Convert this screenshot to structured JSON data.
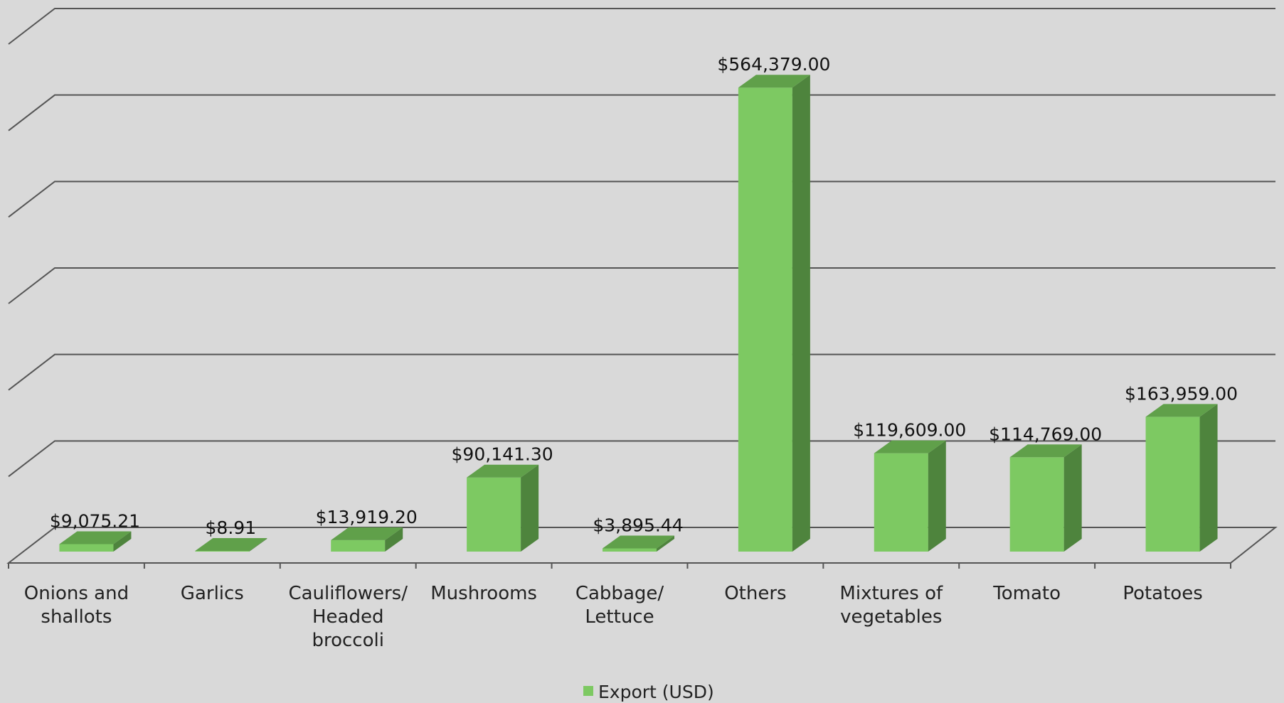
{
  "chart_data": {
    "type": "bar",
    "style": "3d-column",
    "categories": [
      "Onions and shallots",
      "Garlics",
      "Cauliflowers/ Headed broccoli",
      "Mushrooms",
      "Cabbage/ Lettuce",
      "Others",
      "Mixtures of vegetables",
      "Tomato",
      "Potatoes"
    ],
    "category_label_lines": [
      [
        "Onions and",
        "shallots"
      ],
      [
        "Garlics"
      ],
      [
        "Cauliflowers/",
        "Headed",
        "broccoli"
      ],
      [
        "Mushrooms"
      ],
      [
        "Cabbage/",
        "Lettuce"
      ],
      [
        "Others"
      ],
      [
        "Mixtures of",
        "vegetables"
      ],
      [
        "Tomato"
      ],
      [
        "Potatoes"
      ]
    ],
    "series": [
      {
        "name": "Export (USD)",
        "values": [
          9075.21,
          8.91,
          13919.2,
          90141.3,
          3895.44,
          564379.0,
          119609.0,
          114769.0,
          163959.0
        ],
        "data_labels": [
          "$9,075.21",
          "$8.91",
          "$13,919.20",
          "$90,141.30",
          "$3,895.44",
          "$564,379.00",
          "$119,609.00",
          "$114,769.00",
          "$163,959.00"
        ],
        "color": "#7dc962",
        "side_color": "#4e843d",
        "top_color": "#60a04a"
      }
    ],
    "ylim": [
      0,
      600000
    ],
    "y_gridline_step": 100000,
    "y_tick_labels_visible": false,
    "grid": true,
    "legend_position": "bottom",
    "background_color": "#d9d9d9",
    "gridline_color": "#555555"
  },
  "legend": {
    "label": "Export (USD)"
  }
}
